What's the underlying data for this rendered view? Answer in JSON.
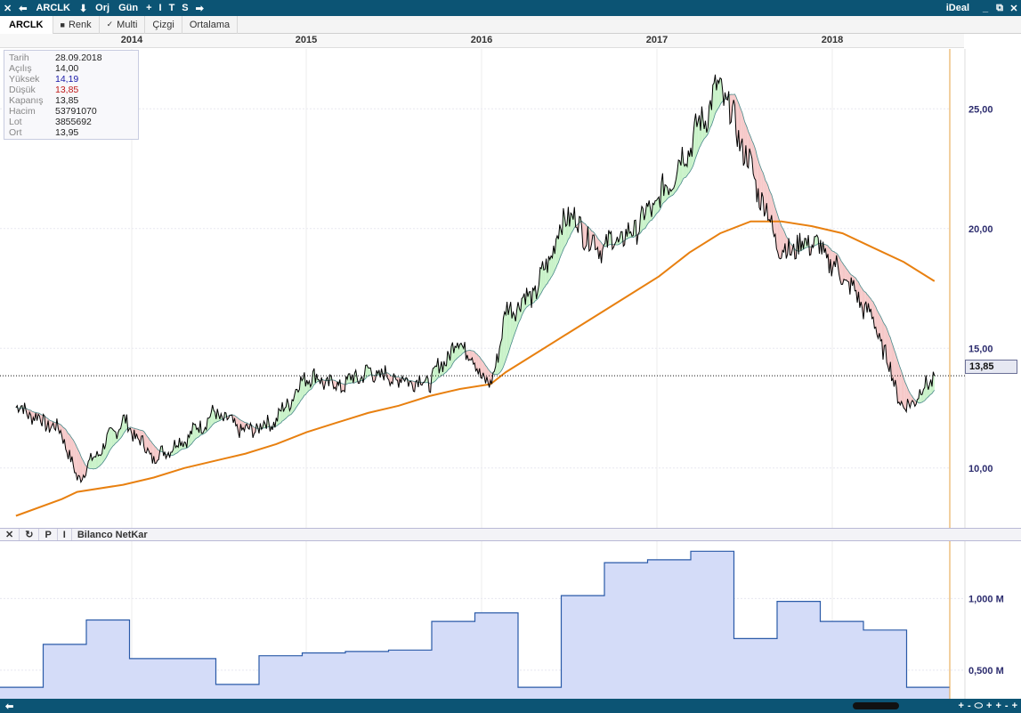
{
  "titlebar": {
    "buttons": [
      "✕",
      "⬅",
      "ARCLK",
      "⬇",
      "Orj",
      "Gün",
      "+",
      "I",
      "T",
      "S",
      "➡"
    ],
    "brand": "iDeal",
    "win_controls": [
      "_",
      "⧉",
      "✕"
    ]
  },
  "toolbar": {
    "symbol": "ARCLK",
    "renk_mark": "■",
    "renk": "Renk",
    "multi_mark": "✓",
    "multi": "Multi",
    "cizgi": "Çizgi",
    "ortalama": "Ortalama"
  },
  "years": [
    "2014",
    "2015",
    "2016",
    "2017",
    "2018"
  ],
  "info": {
    "rows": [
      {
        "k": "Tarih",
        "v": "28.09.2018"
      },
      {
        "k": "Açılış",
        "v": "14,00"
      },
      {
        "k": "Yüksek",
        "v": "14,19"
      },
      {
        "k": "Düşük",
        "v": "13,85"
      },
      {
        "k": "Kapanış",
        "v": "13,85"
      },
      {
        "k": "Hacim",
        "v": "53791070"
      },
      {
        "k": "Lot",
        "v": "3855692"
      },
      {
        "k": "Ort",
        "v": "13,95"
      }
    ]
  },
  "price_tag": "13,85",
  "subpanel": {
    "buttons": [
      "✕",
      "↻",
      "P",
      "I"
    ],
    "title": "Bilanco NetKar"
  },
  "statusbar": {
    "left_arrow": "⬅",
    "right_controls": [
      "+",
      "-",
      "⬭",
      "+",
      "+",
      "-",
      "+"
    ]
  },
  "colors": {
    "titlebar": "#0c5474",
    "price_line": "#000000",
    "ma_long": "#e88010",
    "band_up": "#c8f2c8",
    "band_down": "#f6c8c8",
    "netkar_fill": "#d4dcf8",
    "netkar_line": "#2a5aa8",
    "current_line": "#e6a040"
  },
  "chart_data": [
    {
      "type": "line",
      "title": "",
      "series": [
        {
          "x": [
            "2013-09",
            "2013-12",
            "2014-01",
            "2014-04",
            "2014-06",
            "2014-08",
            "2014-10",
            "2014-12",
            "2015-02",
            "2015-04",
            "2015-06",
            "2015-08",
            "2015-10",
            "2015-12",
            "2016-02",
            "2016-04",
            "2016-05",
            "2016-07",
            "2016-09",
            "2016-11",
            "2017-01",
            "2017-03",
            "2017-05",
            "2017-07",
            "2017-09",
            "2017-11",
            "2018-01",
            "2018-03",
            "2018-05",
            "2018-07",
            "2018-09"
          ],
          "values": [
            12.6,
            11.5,
            9.5,
            12.0,
            10.4,
            11.2,
            12.3,
            11.5,
            12.0,
            13.9,
            13.4,
            14.0,
            13.7,
            13.6,
            15.4,
            13.3,
            16.5,
            17.4,
            20.7,
            19.2,
            19.7,
            21.2,
            23.5,
            26.0,
            22.5,
            19.0,
            19.5,
            18.0,
            16.2,
            12.4,
            13.85
          ]
        },
        {
          "values": [
            8.0,
            8.7,
            9.0,
            9.3,
            9.6,
            10.0,
            10.3,
            10.6,
            11.0,
            11.5,
            11.9,
            12.3,
            12.6,
            13.0,
            13.3,
            13.5,
            14.0,
            14.8,
            15.6,
            16.4,
            17.2,
            18.0,
            19.0,
            19.8,
            20.3,
            20.3,
            20.1,
            19.8,
            19.2,
            18.6,
            17.8
          ]
        }
      ],
      "yticks": [
        "10,00",
        "15,00",
        "20,00",
        "25,00"
      ],
      "ylim": [
        7.5,
        27.5
      ],
      "last_value": 13.85
    },
    {
      "type": "area",
      "title": "Bilanco NetKar",
      "categories": [
        "2013-Q3",
        "2013-Q4",
        "2014-Q1",
        "2014-Q2",
        "2014-Q3",
        "2014-Q4",
        "2015-Q1",
        "2015-Q2",
        "2015-Q3",
        "2015-Q4",
        "2016-Q1",
        "2016-Q2",
        "2016-Q3",
        "2016-Q4",
        "2017-Q1",
        "2017-Q2",
        "2017-Q3",
        "2017-Q4",
        "2018-Q1",
        "2018-Q2",
        "2018-Q3",
        "2018-Q4"
      ],
      "values": [
        0.38,
        0.68,
        0.85,
        0.58,
        0.58,
        0.4,
        0.6,
        0.62,
        0.63,
        0.64,
        0.84,
        0.9,
        0.38,
        1.02,
        1.25,
        1.27,
        1.33,
        0.72,
        0.98,
        0.84,
        0.78,
        0.38
      ],
      "yticks": [
        "0,500 M",
        "1,000 M"
      ],
      "ylim": [
        0.3,
        1.4
      ]
    }
  ]
}
